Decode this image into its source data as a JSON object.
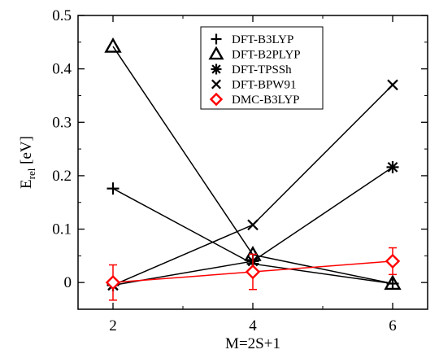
{
  "chart_data": {
    "type": "line",
    "xlabel": "M=2S+1",
    "ylabel_main": "E",
    "ylabel_sub": "rel",
    "ylabel_unit": " [eV]",
    "xlim": [
      1.5,
      6.5
    ],
    "ylim": [
      -0.05,
      0.5
    ],
    "x_ticks": [
      2,
      4,
      6
    ],
    "y_ticks": [
      0,
      0.1,
      0.2,
      0.3,
      0.4,
      0.5
    ],
    "y_tick_labels": [
      "0",
      "0.1",
      "0.2",
      "0.3",
      "0.4",
      "0.5"
    ],
    "grid": false,
    "legend_position": "top-center",
    "series": [
      {
        "name": "DFT-B3LYP",
        "marker": "plus",
        "color": "#000000",
        "x": [
          2,
          4,
          6
        ],
        "y": [
          0.176,
          0.035,
          -0.002
        ]
      },
      {
        "name": "DFT-B2PLYP",
        "marker": "triangle",
        "color": "#000000",
        "x": [
          2,
          4,
          6
        ],
        "y": [
          0.442,
          0.052,
          -0.002
        ]
      },
      {
        "name": "DFT-TPSSh",
        "marker": "asterisk",
        "color": "#000000",
        "x": [
          2,
          4,
          6
        ],
        "y": [
          -0.005,
          0.04,
          0.216
        ]
      },
      {
        "name": "DFT-BPW91",
        "marker": "cross",
        "color": "#000000",
        "x": [
          2,
          4,
          6
        ],
        "y": [
          -0.005,
          0.108,
          0.37
        ]
      },
      {
        "name": "DMC-B3LYP",
        "marker": "diamond",
        "color": "#ff0000",
        "x": [
          2,
          4,
          6
        ],
        "y": [
          0.0,
          0.02,
          0.04
        ],
        "err": [
          0.033,
          0.033,
          0.025
        ]
      }
    ]
  }
}
